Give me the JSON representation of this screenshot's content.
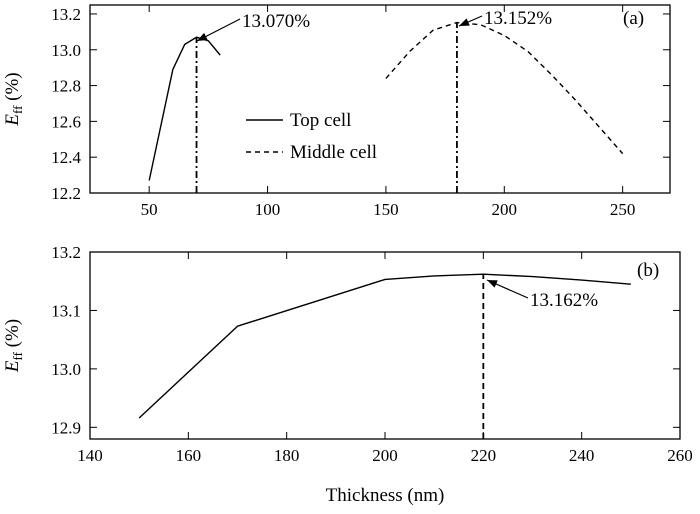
{
  "chart_data": [
    {
      "type": "line",
      "panel_label": "(a)",
      "ylabel": "E_ff (%)",
      "ylabel_main": "E",
      "ylabel_sub": "ff",
      "ylabel_unit": "(%)",
      "xlabel": "",
      "xlim": [
        25,
        270
      ],
      "ylim": [
        12.2,
        13.25
      ],
      "xticks": [
        50,
        100,
        150,
        200,
        250
      ],
      "yticks": [
        12.2,
        12.4,
        12.6,
        12.8,
        13.0,
        13.2
      ],
      "ytick_labels": [
        "12.2",
        "12.4",
        "12.6",
        "12.8",
        "13.0",
        "13.2"
      ],
      "legend": {
        "position": "center",
        "entries": [
          {
            "label": "Top cell",
            "style": "solid"
          },
          {
            "label": "Middle cell",
            "style": "dashed"
          }
        ]
      },
      "series": [
        {
          "name": "Top cell",
          "style": "solid",
          "x": [
            50,
            60,
            65,
            70,
            75,
            80
          ],
          "y": [
            12.27,
            12.89,
            13.03,
            13.07,
            13.05,
            12.97
          ]
        },
        {
          "name": "Middle cell",
          "style": "dashed",
          "x": [
            150,
            160,
            170,
            180,
            190,
            200,
            210,
            220,
            230,
            240,
            250
          ],
          "y": [
            12.84,
            12.99,
            13.11,
            13.152,
            13.14,
            13.08,
            12.99,
            12.86,
            12.72,
            12.57,
            12.42
          ]
        }
      ],
      "annotations": [
        {
          "text": "13.070%",
          "x": 70,
          "y": 13.07
        },
        {
          "text": "13.152%",
          "x": 180,
          "y": 13.152
        }
      ],
      "vlines": [
        {
          "x": 70,
          "from": 12.2,
          "to": 13.07,
          "style": "dashdot"
        },
        {
          "x": 180,
          "from": 12.2,
          "to": 13.152,
          "style": "dashdot"
        }
      ],
      "grid": false
    },
    {
      "type": "line",
      "panel_label": "(b)",
      "ylabel": "E_ff (%)",
      "ylabel_main": "E",
      "ylabel_sub": "ff",
      "ylabel_unit": "(%)",
      "xlabel": "Thickness (nm)",
      "xlim": [
        140,
        260
      ],
      "ylim": [
        12.88,
        13.2
      ],
      "xticks": [
        140,
        160,
        180,
        200,
        220,
        240,
        260
      ],
      "yticks": [
        12.9,
        13.0,
        13.1,
        13.2
      ],
      "ytick_labels": [
        "12.9",
        "13.0",
        "13.1",
        "13.2"
      ],
      "series": [
        {
          "name": "",
          "style": "solid",
          "x": [
            150,
            170,
            200,
            210,
            220,
            230,
            240,
            250
          ],
          "y": [
            12.916,
            13.073,
            13.153,
            13.159,
            13.162,
            13.158,
            13.152,
            13.145
          ]
        }
      ],
      "annotations": [
        {
          "text": "13.162%",
          "x": 220,
          "y": 13.162
        }
      ],
      "vlines": [
        {
          "x": 220,
          "from": 12.88,
          "to": 13.162,
          "style": "dashed"
        }
      ],
      "grid": false
    }
  ]
}
